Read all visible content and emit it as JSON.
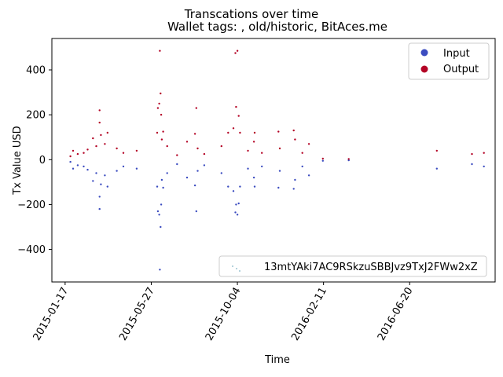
{
  "chart_data": {
    "type": "scatter",
    "suptitle": "Transcations over time",
    "title": "Wallet tags: , old/historic, BitAces.me",
    "xlabel": "Time",
    "ylabel": "Tx Value USD",
    "x_start": "2014-12-28",
    "x_end": "2016-10-27",
    "ylim": [
      -545,
      540
    ],
    "x_ticks": [
      "2015-01-17",
      "2015-05-27",
      "2015-10-04",
      "2016-02-11",
      "2016-06-20"
    ],
    "y_ticks": [
      -400,
      -200,
      0,
      200,
      400
    ],
    "grid": false,
    "legend_placement": "upper right",
    "lower_legend_placement": "lower right",
    "colors": {
      "Input": "#3b4cc0",
      "Output": "#b40426",
      "address": "#7fb2c4"
    },
    "series": [
      {
        "name": "Input",
        "points": [
          [
            "2015-01-25",
            -10
          ],
          [
            "2015-01-29",
            -40
          ],
          [
            "2015-02-05",
            -25
          ],
          [
            "2015-02-14",
            -30
          ],
          [
            "2015-02-20",
            -45
          ],
          [
            "2015-02-28",
            -95
          ],
          [
            "2015-03-05",
            -60
          ],
          [
            "2015-03-10",
            -220
          ],
          [
            "2015-03-10",
            -165
          ],
          [
            "2015-03-12",
            -110
          ],
          [
            "2015-03-18",
            -70
          ],
          [
            "2015-03-22",
            -120
          ],
          [
            "2015-04-05",
            -50
          ],
          [
            "2015-04-15",
            -30
          ],
          [
            "2015-05-05",
            -40
          ],
          [
            "2015-06-05",
            -120
          ],
          [
            "2015-06-06",
            -230
          ],
          [
            "2015-06-08",
            -245
          ],
          [
            "2015-06-09",
            -490
          ],
          [
            "2015-06-10",
            -300
          ],
          [
            "2015-06-11",
            -200
          ],
          [
            "2015-06-12",
            -90
          ],
          [
            "2015-06-14",
            -125
          ],
          [
            "2015-06-20",
            -60
          ],
          [
            "2015-07-05",
            -20
          ],
          [
            "2015-07-20",
            -80
          ],
          [
            "2015-08-01",
            -115
          ],
          [
            "2015-08-03",
            -230
          ],
          [
            "2015-08-05",
            -50
          ],
          [
            "2015-08-15",
            -25
          ],
          [
            "2015-09-10",
            -60
          ],
          [
            "2015-09-20",
            -120
          ],
          [
            "2015-09-28",
            -140
          ],
          [
            "2015-10-01",
            -235
          ],
          [
            "2015-10-02",
            -200
          ],
          [
            "2015-10-04",
            -245
          ],
          [
            "2015-10-06",
            -195
          ],
          [
            "2015-10-08",
            -120
          ],
          [
            "2015-10-20",
            -40
          ],
          [
            "2015-10-29",
            -80
          ],
          [
            "2015-10-30",
            -120
          ],
          [
            "2015-11-10",
            -30
          ],
          [
            "2015-12-05",
            -125
          ],
          [
            "2015-12-07",
            -50
          ],
          [
            "2015-12-28",
            -130
          ],
          [
            "2015-12-30",
            -90
          ],
          [
            "2016-01-10",
            -30
          ],
          [
            "2016-01-20",
            -70
          ],
          [
            "2016-02-10",
            -5
          ],
          [
            "2016-03-20",
            -3
          ],
          [
            "2016-07-31",
            -40
          ],
          [
            "2016-09-22",
            -20
          ],
          [
            "2016-10-10",
            -30
          ]
        ]
      },
      {
        "name": "Output",
        "points": [
          [
            "2015-01-25",
            15
          ],
          [
            "2015-01-29",
            40
          ],
          [
            "2015-02-05",
            25
          ],
          [
            "2015-02-14",
            30
          ],
          [
            "2015-02-20",
            45
          ],
          [
            "2015-02-28",
            95
          ],
          [
            "2015-03-05",
            60
          ],
          [
            "2015-03-10",
            220
          ],
          [
            "2015-03-10",
            165
          ],
          [
            "2015-03-12",
            110
          ],
          [
            "2015-03-18",
            70
          ],
          [
            "2015-03-22",
            120
          ],
          [
            "2015-04-05",
            50
          ],
          [
            "2015-04-15",
            30
          ],
          [
            "2015-05-05",
            40
          ],
          [
            "2015-06-05",
            120
          ],
          [
            "2015-06-06",
            230
          ],
          [
            "2015-06-08",
            250
          ],
          [
            "2015-06-09",
            485
          ],
          [
            "2015-06-10",
            295
          ],
          [
            "2015-06-11",
            200
          ],
          [
            "2015-06-12",
            90
          ],
          [
            "2015-06-14",
            125
          ],
          [
            "2015-06-20",
            60
          ],
          [
            "2015-07-05",
            20
          ],
          [
            "2015-07-20",
            80
          ],
          [
            "2015-08-01",
            115
          ],
          [
            "2015-08-03",
            230
          ],
          [
            "2015-08-05",
            50
          ],
          [
            "2015-08-15",
            25
          ],
          [
            "2015-09-10",
            60
          ],
          [
            "2015-09-20",
            120
          ],
          [
            "2015-09-28",
            140
          ],
          [
            "2015-10-01",
            475
          ],
          [
            "2015-10-02",
            235
          ],
          [
            "2015-10-04",
            485
          ],
          [
            "2015-10-06",
            195
          ],
          [
            "2015-10-08",
            120
          ],
          [
            "2015-10-20",
            40
          ],
          [
            "2015-10-29",
            80
          ],
          [
            "2015-10-30",
            120
          ],
          [
            "2015-11-10",
            30
          ],
          [
            "2015-12-05",
            125
          ],
          [
            "2015-12-07",
            50
          ],
          [
            "2015-12-28",
            130
          ],
          [
            "2015-12-30",
            90
          ],
          [
            "2016-01-10",
            30
          ],
          [
            "2016-01-20",
            70
          ],
          [
            "2016-02-10",
            5
          ],
          [
            "2016-03-20",
            3
          ],
          [
            "2016-07-31",
            40
          ],
          [
            "2016-09-22",
            25
          ],
          [
            "2016-10-10",
            30
          ]
        ]
      }
    ],
    "legend": [
      {
        "label": "Input",
        "color": "#3b4cc0"
      },
      {
        "label": "Output",
        "color": "#b40426"
      }
    ],
    "address_legend": {
      "label": "13mtYAki7AC9RSkzuSBBJvz9TxJ2FWw2xZ"
    }
  }
}
